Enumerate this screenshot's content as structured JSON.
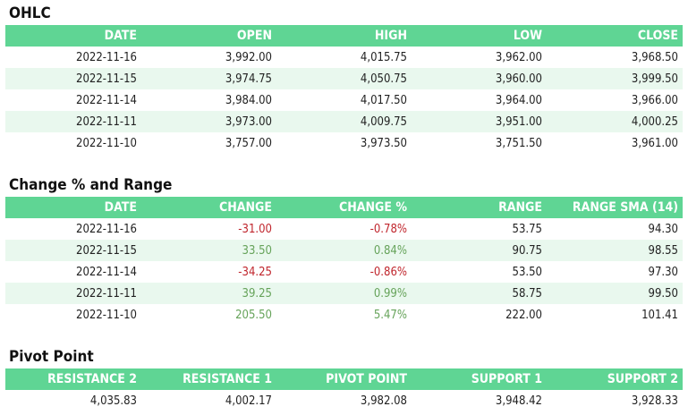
{
  "ohlc": {
    "title": "OHLC",
    "headers": [
      "DATE",
      "OPEN",
      "HIGH",
      "LOW",
      "CLOSE"
    ],
    "rows": [
      [
        "2022-11-16",
        "3,992.00",
        "4,015.75",
        "3,962.00",
        "3,968.50"
      ],
      [
        "2022-11-15",
        "3,974.75",
        "4,050.75",
        "3,960.00",
        "3,999.50"
      ],
      [
        "2022-11-14",
        "3,984.00",
        "4,017.50",
        "3,964.00",
        "3,966.00"
      ],
      [
        "2022-11-11",
        "3,973.00",
        "4,009.75",
        "3,951.00",
        "4,000.25"
      ],
      [
        "2022-11-10",
        "3,757.00",
        "3,973.50",
        "3,751.50",
        "3,961.00"
      ]
    ]
  },
  "change": {
    "title": "Change % and Range",
    "headers": [
      "DATE",
      "CHANGE",
      "CHANGE %",
      "RANGE",
      "RANGE SMA (14)"
    ],
    "rows": [
      [
        "2022-11-16",
        "-31.00",
        "-0.78%",
        "53.75",
        "94.30"
      ],
      [
        "2022-11-15",
        "33.50",
        "0.84%",
        "90.75",
        "98.55"
      ],
      [
        "2022-11-14",
        "-34.25",
        "-0.86%",
        "53.50",
        "97.30"
      ],
      [
        "2022-11-11",
        "39.25",
        "0.99%",
        "58.75",
        "99.50"
      ],
      [
        "2022-11-10",
        "205.50",
        "5.47%",
        "222.00",
        "101.41"
      ]
    ],
    "colors": {
      "negative": "#c0262d",
      "positive": "#66a35a"
    }
  },
  "pivot": {
    "title": "Pivot Point",
    "headers": [
      "RESISTANCE 2",
      "RESISTANCE 1",
      "PIVOT POINT",
      "SUPPORT 1",
      "SUPPORT 2"
    ],
    "rows": [
      [
        "4,035.83",
        "4,002.17",
        "3,982.08",
        "3,948.42",
        "3,928.33"
      ]
    ]
  },
  "colors": {
    "header_bg": "#5fd594",
    "alt_row_bg": "#e9f8ee"
  }
}
